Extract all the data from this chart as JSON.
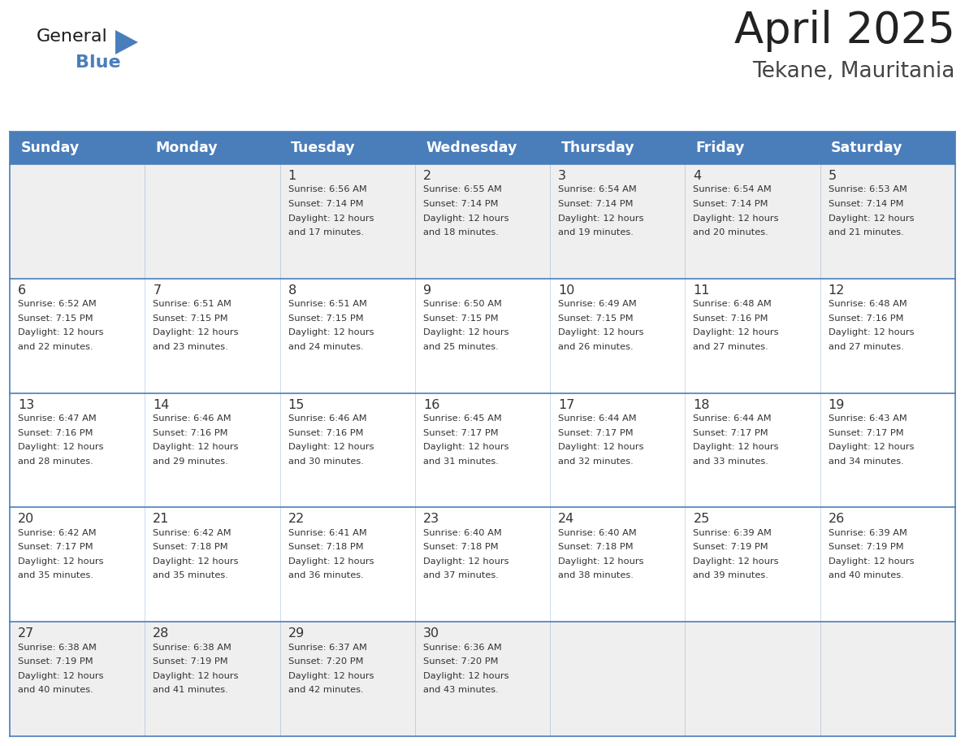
{
  "title": "April 2025",
  "subtitle": "Tekane, Mauritania",
  "header_color": "#4A7EBB",
  "header_text_color": "#FFFFFF",
  "cell_bg_white": "#FFFFFF",
  "cell_bg_gray": "#EFEFEF",
  "border_color": "#4A7EBB",
  "text_color": "#333333",
  "days_of_week": [
    "Sunday",
    "Monday",
    "Tuesday",
    "Wednesday",
    "Thursday",
    "Friday",
    "Saturday"
  ],
  "weeks": [
    [
      {
        "day": null,
        "sunrise": null,
        "sunset": null,
        "daylight": null
      },
      {
        "day": null,
        "sunrise": null,
        "sunset": null,
        "daylight": null
      },
      {
        "day": 1,
        "sunrise": "6:56 AM",
        "sunset": "7:14 PM",
        "daylight": "12 hours and 17 minutes"
      },
      {
        "day": 2,
        "sunrise": "6:55 AM",
        "sunset": "7:14 PM",
        "daylight": "12 hours and 18 minutes"
      },
      {
        "day": 3,
        "sunrise": "6:54 AM",
        "sunset": "7:14 PM",
        "daylight": "12 hours and 19 minutes"
      },
      {
        "day": 4,
        "sunrise": "6:54 AM",
        "sunset": "7:14 PM",
        "daylight": "12 hours and 20 minutes"
      },
      {
        "day": 5,
        "sunrise": "6:53 AM",
        "sunset": "7:14 PM",
        "daylight": "12 hours and 21 minutes"
      }
    ],
    [
      {
        "day": 6,
        "sunrise": "6:52 AM",
        "sunset": "7:15 PM",
        "daylight": "12 hours and 22 minutes"
      },
      {
        "day": 7,
        "sunrise": "6:51 AM",
        "sunset": "7:15 PM",
        "daylight": "12 hours and 23 minutes"
      },
      {
        "day": 8,
        "sunrise": "6:51 AM",
        "sunset": "7:15 PM",
        "daylight": "12 hours and 24 minutes"
      },
      {
        "day": 9,
        "sunrise": "6:50 AM",
        "sunset": "7:15 PM",
        "daylight": "12 hours and 25 minutes"
      },
      {
        "day": 10,
        "sunrise": "6:49 AM",
        "sunset": "7:15 PM",
        "daylight": "12 hours and 26 minutes"
      },
      {
        "day": 11,
        "sunrise": "6:48 AM",
        "sunset": "7:16 PM",
        "daylight": "12 hours and 27 minutes"
      },
      {
        "day": 12,
        "sunrise": "6:48 AM",
        "sunset": "7:16 PM",
        "daylight": "12 hours and 27 minutes"
      }
    ],
    [
      {
        "day": 13,
        "sunrise": "6:47 AM",
        "sunset": "7:16 PM",
        "daylight": "12 hours and 28 minutes"
      },
      {
        "day": 14,
        "sunrise": "6:46 AM",
        "sunset": "7:16 PM",
        "daylight": "12 hours and 29 minutes"
      },
      {
        "day": 15,
        "sunrise": "6:46 AM",
        "sunset": "7:16 PM",
        "daylight": "12 hours and 30 minutes"
      },
      {
        "day": 16,
        "sunrise": "6:45 AM",
        "sunset": "7:17 PM",
        "daylight": "12 hours and 31 minutes"
      },
      {
        "day": 17,
        "sunrise": "6:44 AM",
        "sunset": "7:17 PM",
        "daylight": "12 hours and 32 minutes"
      },
      {
        "day": 18,
        "sunrise": "6:44 AM",
        "sunset": "7:17 PM",
        "daylight": "12 hours and 33 minutes"
      },
      {
        "day": 19,
        "sunrise": "6:43 AM",
        "sunset": "7:17 PM",
        "daylight": "12 hours and 34 minutes"
      }
    ],
    [
      {
        "day": 20,
        "sunrise": "6:42 AM",
        "sunset": "7:17 PM",
        "daylight": "12 hours and 35 minutes"
      },
      {
        "day": 21,
        "sunrise": "6:42 AM",
        "sunset": "7:18 PM",
        "daylight": "12 hours and 35 minutes"
      },
      {
        "day": 22,
        "sunrise": "6:41 AM",
        "sunset": "7:18 PM",
        "daylight": "12 hours and 36 minutes"
      },
      {
        "day": 23,
        "sunrise": "6:40 AM",
        "sunset": "7:18 PM",
        "daylight": "12 hours and 37 minutes"
      },
      {
        "day": 24,
        "sunrise": "6:40 AM",
        "sunset": "7:18 PM",
        "daylight": "12 hours and 38 minutes"
      },
      {
        "day": 25,
        "sunrise": "6:39 AM",
        "sunset": "7:19 PM",
        "daylight": "12 hours and 39 minutes"
      },
      {
        "day": 26,
        "sunrise": "6:39 AM",
        "sunset": "7:19 PM",
        "daylight": "12 hours and 40 minutes"
      }
    ],
    [
      {
        "day": 27,
        "sunrise": "6:38 AM",
        "sunset": "7:19 PM",
        "daylight": "12 hours and 40 minutes"
      },
      {
        "day": 28,
        "sunrise": "6:38 AM",
        "sunset": "7:19 PM",
        "daylight": "12 hours and 41 minutes"
      },
      {
        "day": 29,
        "sunrise": "6:37 AM",
        "sunset": "7:20 PM",
        "daylight": "12 hours and 42 minutes"
      },
      {
        "day": 30,
        "sunrise": "6:36 AM",
        "sunset": "7:20 PM",
        "daylight": "12 hours and 43 minutes"
      },
      {
        "day": null,
        "sunrise": null,
        "sunset": null,
        "daylight": null
      },
      {
        "day": null,
        "sunrise": null,
        "sunset": null,
        "daylight": null
      },
      {
        "day": null,
        "sunrise": null,
        "sunset": null,
        "daylight": null
      }
    ]
  ],
  "logo_color_general": "#1a1a1a",
  "logo_color_blue": "#4A7EBB",
  "logo_triangle_color": "#4A7EBB"
}
